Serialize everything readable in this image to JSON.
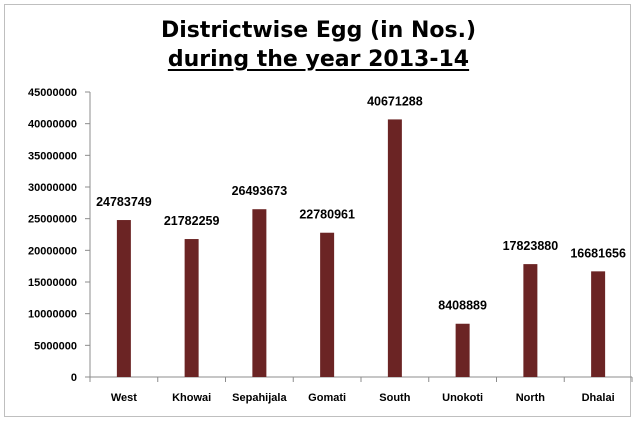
{
  "chart_data": {
    "type": "bar",
    "title_line1": "Districtwise  Egg (in Nos.)",
    "title_line2": "during  the year 2013-14",
    "categories": [
      "West",
      "Khowai",
      "Sepahijala",
      "Gomati",
      "South",
      "Unokoti",
      "North",
      "Dhalai"
    ],
    "values": [
      24783749,
      21782259,
      26493673,
      22780961,
      40671288,
      8408889,
      17823880,
      16681656
    ],
    "data_labels": [
      "24783749",
      "21782259",
      "26493673",
      "22780961",
      "40671288",
      "8408889",
      "17823880",
      "16681656"
    ],
    "yticks": [
      0,
      5000000,
      10000000,
      15000000,
      20000000,
      25000000,
      30000000,
      35000000,
      40000000,
      45000000
    ],
    "ylim": [
      0,
      45000000
    ],
    "xlabel": "",
    "ylabel": "",
    "grid": false,
    "legend": "none",
    "bar_color": "#6b2424"
  }
}
